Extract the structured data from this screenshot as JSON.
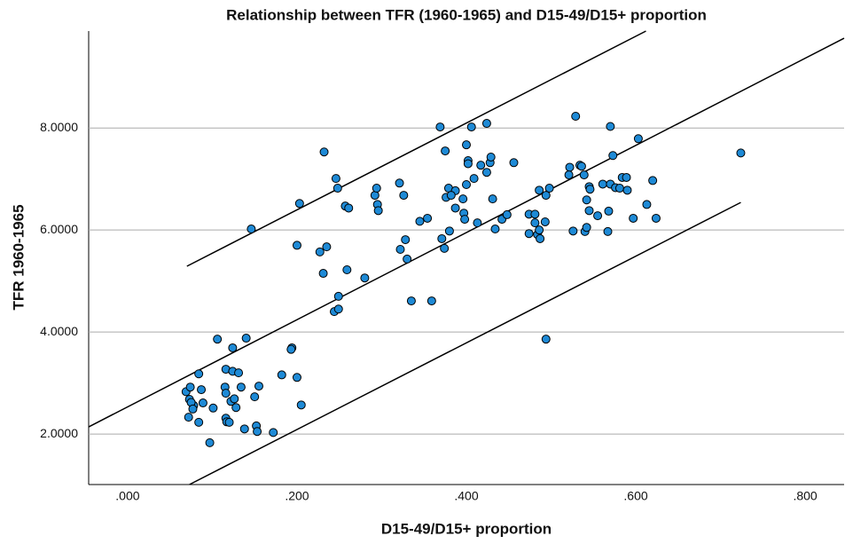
{
  "chart_data": {
    "type": "scatter",
    "title": "Relationship between TFR (1960-1965) and D15-49/D15+ proportion",
    "x_label": "D15-49/D15+ proportion",
    "y_label": "TFR 1960-1965",
    "color": "#1e8ad6",
    "xlim": [
      -0.046,
      0.846
    ],
    "ylim": [
      1.01,
      9.9
    ],
    "xticks": [
      {
        "value": 0,
        "label": ".000"
      },
      {
        "value": 0.2,
        "label": ".200"
      },
      {
        "value": 0.4,
        "label": ".400"
      },
      {
        "value": 0.6,
        "label": ".600"
      },
      {
        "value": 0.8,
        "label": ".800"
      }
    ],
    "yticks": [
      {
        "value": 2,
        "label": "2.0000"
      },
      {
        "value": 4,
        "label": "4.0000"
      },
      {
        "value": 6,
        "label": "6.0000"
      },
      {
        "value": 8,
        "label": "8.0000"
      }
    ],
    "grid": true,
    "lines": [
      {
        "x": [
          -0.046,
          0.846
        ],
        "y": [
          2.14,
          9.76
        ]
      },
      {
        "x": [
          0.07,
          0.612
        ],
        "y": [
          5.29,
          9.9
        ]
      },
      {
        "x": [
          0.073,
          0.724
        ],
        "y": [
          1.01,
          6.54
        ]
      }
    ],
    "x": [
      0.106,
      0.14,
      0.124,
      0.194,
      0.193,
      0.084,
      0.116,
      0.124,
      0.131,
      0.182,
      0.2,
      0.069,
      0.074,
      0.087,
      0.115,
      0.134,
      0.155,
      0.116,
      0.073,
      0.078,
      0.075,
      0.089,
      0.122,
      0.126,
      0.15,
      0.101,
      0.128,
      0.077,
      0.205,
      0.072,
      0.084,
      0.116,
      0.117,
      0.12,
      0.152,
      0.138,
      0.153,
      0.172,
      0.097,
      0.146,
      0.203,
      0.232,
      0.246,
      0.248,
      0.257,
      0.261,
      0.2,
      0.235,
      0.227,
      0.231,
      0.259,
      0.28,
      0.249,
      0.244,
      0.249,
      0.292,
      0.294,
      0.295,
      0.296,
      0.321,
      0.326,
      0.322,
      0.328,
      0.33,
      0.335,
      0.345,
      0.354,
      0.359,
      0.369,
      0.375,
      0.376,
      0.379,
      0.387,
      0.382,
      0.371,
      0.374,
      0.38,
      0.387,
      0.396,
      0.397,
      0.398,
      0.4,
      0.4,
      0.402,
      0.402,
      0.406,
      0.409,
      0.413,
      0.417,
      0.424,
      0.424,
      0.428,
      0.429,
      0.431,
      0.434,
      0.442,
      0.448,
      0.456,
      0.474,
      0.474,
      0.481,
      0.481,
      0.484,
      0.486,
      0.487,
      0.486,
      0.494,
      0.493,
      0.494,
      0.498,
      0.522,
      0.521,
      0.526,
      0.529,
      0.534,
      0.536,
      0.539,
      0.54,
      0.542,
      0.542,
      0.545,
      0.545,
      0.546,
      0.555,
      0.561,
      0.567,
      0.568,
      0.57,
      0.57,
      0.573,
      0.576,
      0.581,
      0.584,
      0.589,
      0.59,
      0.597,
      0.603,
      0.613,
      0.62,
      0.624,
      0.724
    ],
    "values": [
      3.86,
      3.88,
      3.69,
      3.69,
      3.66,
      3.18,
      3.27,
      3.23,
      3.2,
      3.16,
      3.11,
      2.83,
      2.92,
      2.87,
      2.92,
      2.92,
      2.94,
      2.8,
      2.68,
      2.56,
      2.62,
      2.61,
      2.64,
      2.69,
      2.73,
      2.51,
      2.52,
      2.49,
      2.57,
      2.33,
      2.23,
      2.31,
      2.24,
      2.23,
      2.16,
      2.1,
      2.05,
      2.03,
      1.83,
      6.02,
      6.52,
      7.53,
      7.01,
      6.82,
      6.47,
      6.43,
      5.7,
      5.67,
      5.57,
      5.15,
      5.22,
      5.06,
      4.7,
      4.4,
      4.45,
      6.68,
      6.82,
      6.5,
      6.38,
      6.92,
      6.68,
      5.62,
      5.81,
      5.43,
      4.61,
      6.17,
      6.23,
      4.61,
      8.02,
      7.55,
      6.64,
      6.82,
      6.77,
      6.68,
      5.83,
      5.64,
      5.98,
      6.43,
      6.61,
      6.33,
      6.21,
      6.89,
      7.67,
      7.36,
      7.3,
      8.02,
      7.01,
      6.14,
      7.27,
      7.13,
      8.09,
      7.32,
      7.43,
      6.61,
      6.02,
      6.21,
      6.3,
      7.32,
      5.93,
      6.31,
      6.31,
      6.14,
      5.91,
      6.0,
      5.83,
      6.78,
      3.86,
      6.16,
      6.68,
      6.82,
      7.23,
      7.08,
      5.98,
      8.23,
      7.27,
      7.25,
      7.08,
      5.97,
      6.05,
      6.59,
      6.38,
      6.85,
      6.8,
      6.28,
      6.9,
      5.97,
      6.37,
      6.9,
      8.03,
      7.46,
      6.83,
      6.82,
      7.03,
      7.03,
      6.78,
      6.23,
      7.79,
      6.5,
      6.97,
      6.23,
      7.51
    ]
  }
}
